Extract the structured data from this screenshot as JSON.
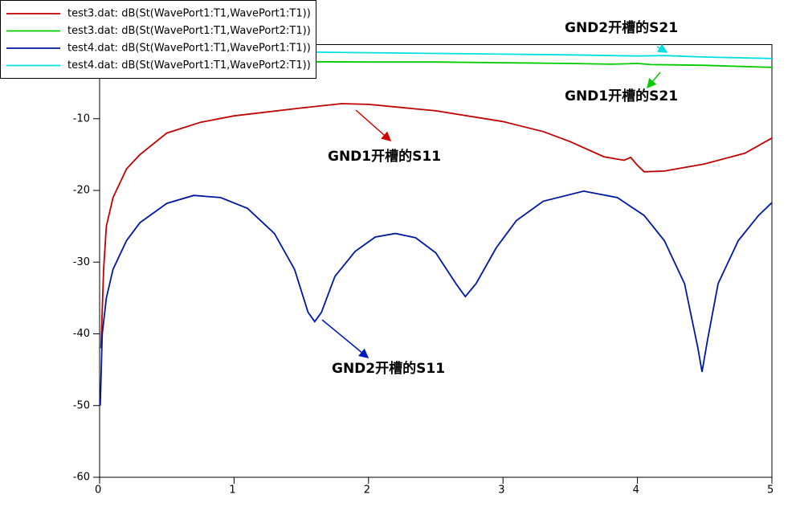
{
  "chart_data": {
    "type": "line",
    "series": [
      {
        "name": "test3.dat: dB(St(WavePort1:T1,WavePort1:T1))",
        "color": "#c00000",
        "x": [
          0.01,
          0.03,
          0.05,
          0.1,
          0.2,
          0.3,
          0.5,
          0.75,
          1.0,
          1.5,
          1.8,
          2.0,
          2.5,
          3.0,
          3.3,
          3.5,
          3.75,
          3.9,
          3.95,
          4.0,
          4.05,
          4.2,
          4.5,
          4.8,
          5.0
        ],
        "values": [
          -42,
          -31,
          -25,
          -21,
          -17,
          -15,
          -12,
          -10.5,
          -9.6,
          -8.5,
          -7.9,
          -8.0,
          -8.9,
          -10.4,
          -11.8,
          -13.2,
          -15.3,
          -15.8,
          -15.4,
          -16.5,
          -17.4,
          -17.3,
          -16.3,
          -14.8,
          -12.7
        ]
      },
      {
        "name": "test3.dat: dB(St(WavePort1:T1,WavePort2:T1))",
        "color": "#00cc00",
        "x": [
          0,
          0.5,
          1,
          1.5,
          2,
          2.5,
          3,
          3.5,
          3.8,
          4,
          4.1,
          4.3,
          4.5,
          5
        ],
        "values": [
          -1.9,
          -2.0,
          -2.0,
          -2.05,
          -2.1,
          -2.1,
          -2.2,
          -2.3,
          -2.4,
          -2.3,
          -2.45,
          -2.5,
          -2.55,
          -2.85
        ]
      },
      {
        "name": "test4.dat: dB(St(WavePort1:T1,WavePort1:T1))",
        "color": "#0018a0",
        "x": [
          0.005,
          0.02,
          0.05,
          0.1,
          0.2,
          0.3,
          0.5,
          0.7,
          0.9,
          1.1,
          1.3,
          1.45,
          1.55,
          1.6,
          1.65,
          1.75,
          1.9,
          2.05,
          2.2,
          2.35,
          2.5,
          2.65,
          2.72,
          2.8,
          2.95,
          3.1,
          3.3,
          3.6,
          3.85,
          4.05,
          4.2,
          4.35,
          4.45,
          4.48,
          4.52,
          4.6,
          4.75,
          4.9,
          5.0
        ],
        "values": [
          -50,
          -40,
          -35,
          -31,
          -27,
          -24.5,
          -21.8,
          -20.7,
          -21,
          -22.5,
          -26,
          -31,
          -37,
          -38.3,
          -37,
          -32,
          -28.5,
          -26.5,
          -26,
          -26.6,
          -28.7,
          -33,
          -34.8,
          -33,
          -28,
          -24.2,
          -21.5,
          -20.1,
          -21,
          -23.5,
          -27,
          -33,
          -42,
          -45.3,
          -41,
          -33,
          -27,
          -23.5,
          -21.7
        ]
      },
      {
        "name": "test4.dat: dB(St(WavePort1:T1,WavePort2:T1))",
        "color": "#00e0e0",
        "x": [
          0,
          0.5,
          1,
          1.5,
          2,
          2.5,
          3,
          3.5,
          4,
          4.2,
          4.5,
          5
        ],
        "values": [
          -0.3,
          -0.45,
          -0.6,
          -0.7,
          -0.8,
          -0.9,
          -1.0,
          -1.1,
          -1.25,
          -1.2,
          -1.4,
          -1.6
        ]
      }
    ],
    "xlim": [
      0,
      5
    ],
    "xticks": [
      0,
      1,
      2,
      3,
      4,
      5
    ],
    "ylim": [
      -60,
      0
    ],
    "yticks": [
      -60,
      -50,
      -40,
      -30,
      -20,
      -10
    ],
    "grid": false,
    "legend": "upper-left",
    "annotations": [
      {
        "text": "GND2开槽的S21",
        "color": "#00e0e0"
      },
      {
        "text": "GND1开槽的S21",
        "color": "#00cc00"
      },
      {
        "text": "GND1开槽的S11",
        "color": "#d00000"
      },
      {
        "text": "GND2开槽的S11",
        "color": "#0018c0"
      }
    ]
  }
}
